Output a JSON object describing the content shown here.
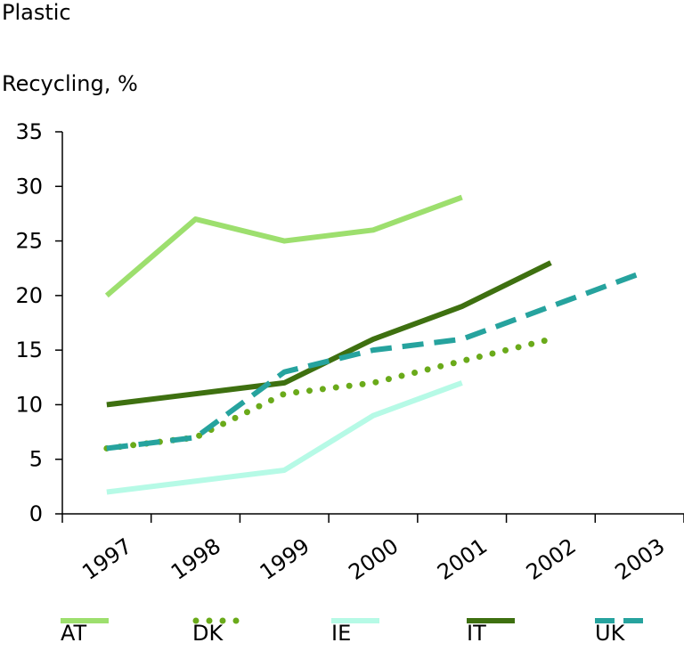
{
  "chart_data": {
    "type": "line",
    "title": "Plastic",
    "ylabel": "Recycling, %",
    "xlabel": "",
    "categories": [
      "1997",
      "1998",
      "1999",
      "2000",
      "2001",
      "2002",
      "2003"
    ],
    "ylim": [
      0,
      35
    ],
    "yticks": [
      0,
      5,
      10,
      15,
      20,
      25,
      30,
      35
    ],
    "grid": false,
    "legend_position": "bottom",
    "series": [
      {
        "name": "AT",
        "values": [
          20,
          27,
          25,
          26,
          29,
          null,
          null
        ],
        "color": "#9ddf6e",
        "style": "solid"
      },
      {
        "name": "DK",
        "values": [
          6,
          7,
          11,
          12,
          14,
          16,
          null
        ],
        "color": "#6aaa1a",
        "style": "dotted"
      },
      {
        "name": "IE",
        "values": [
          2,
          3,
          4,
          9,
          12,
          null,
          null
        ],
        "color": "#b6fae6",
        "style": "solid"
      },
      {
        "name": "IT",
        "values": [
          10,
          11,
          12,
          16,
          19,
          23,
          null
        ],
        "color": "#3e7010",
        "style": "solid"
      },
      {
        "name": "UK",
        "values": [
          6,
          7,
          13,
          15,
          16,
          19,
          22
        ],
        "color": "#26a39e",
        "style": "dashed"
      }
    ]
  }
}
